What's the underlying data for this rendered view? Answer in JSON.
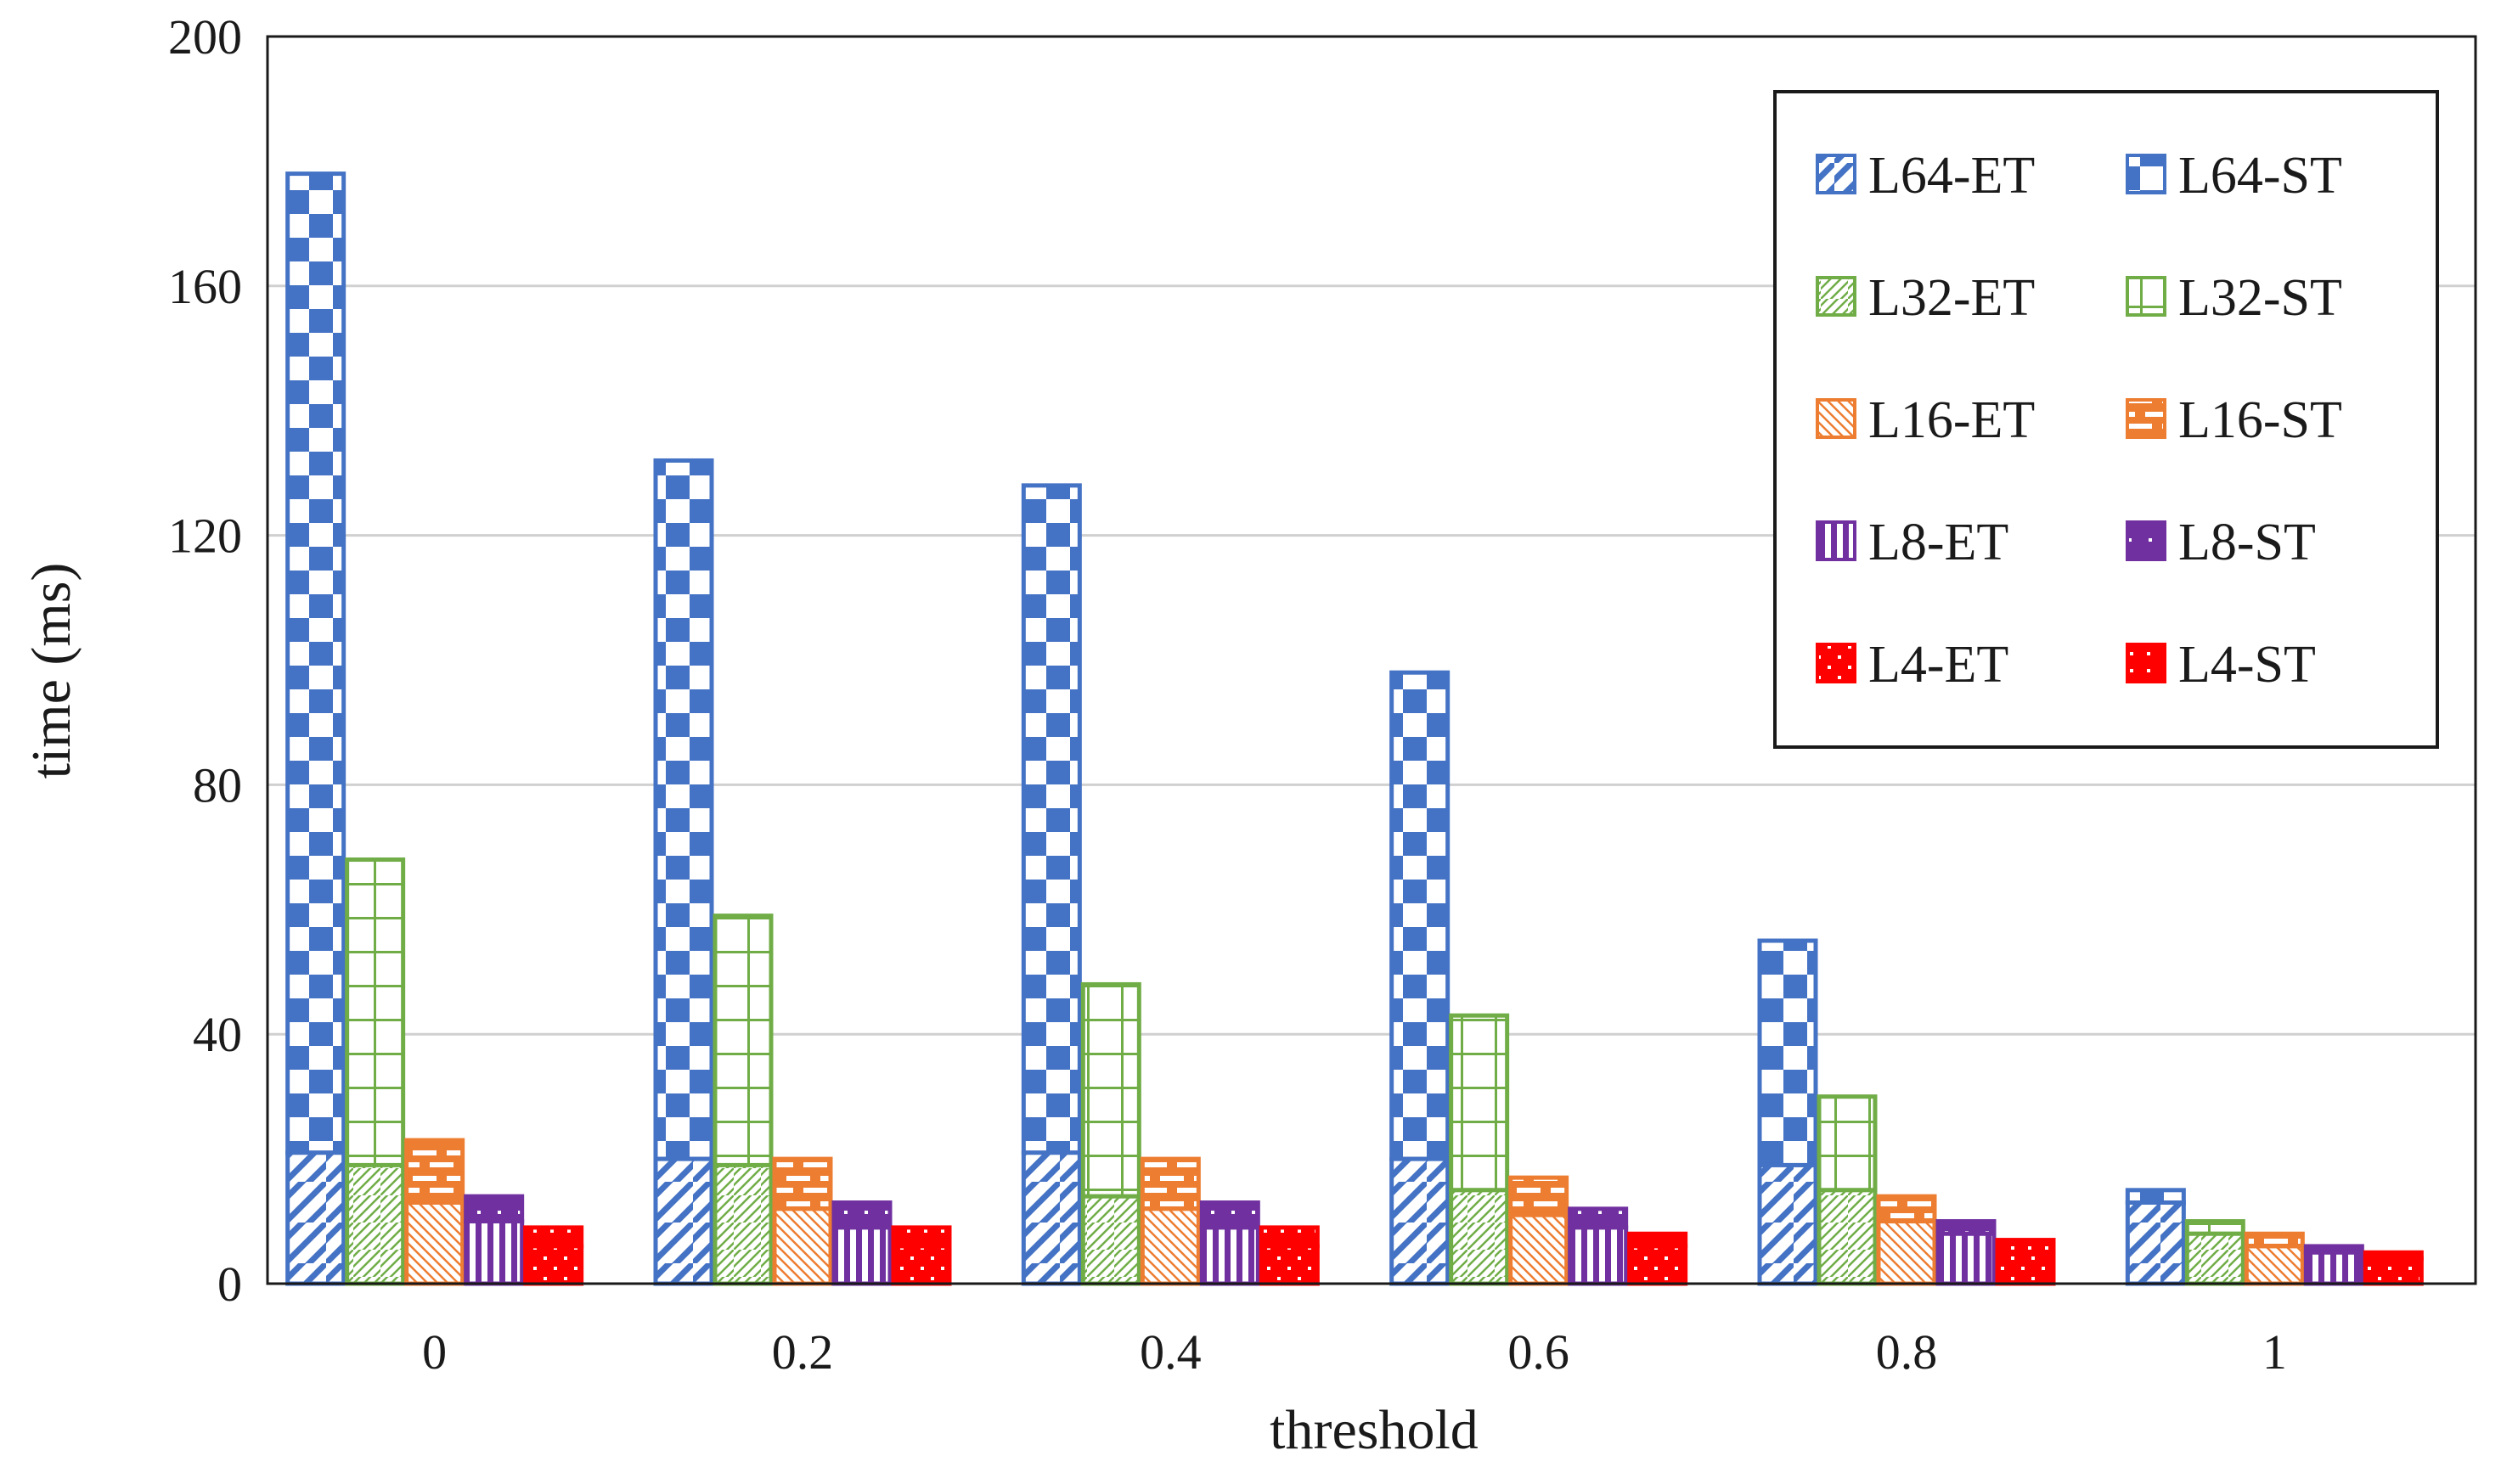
{
  "chart_data": {
    "type": "bar",
    "layout": "stacked-grouped",
    "title": "",
    "xlabel": "threshold",
    "ylabel": "time (ms)",
    "ylim": [
      0,
      200
    ],
    "yticks": [
      "0",
      "40",
      "80",
      "120",
      "160",
      "200"
    ],
    "ytick_values": [
      0,
      40,
      80,
      120,
      160,
      200
    ],
    "grid": true,
    "legend_position": "top-right",
    "categories": [
      "0",
      "0.2",
      "0.4",
      "0.6",
      "0.8",
      "1"
    ],
    "groups": [
      {
        "name": "L64",
        "color": "#4472C4",
        "et_label": "L64-ET",
        "st_label": "L64-ST",
        "et": [
          21,
          20,
          21,
          20,
          19,
          13
        ],
        "total": [
          178,
          132,
          128,
          98,
          55,
          15
        ]
      },
      {
        "name": "L32",
        "color": "#70AD47",
        "et_label": "L32-ET",
        "st_label": "L32-ST",
        "et": [
          19,
          19,
          14,
          15,
          15,
          8
        ],
        "total": [
          68,
          59,
          48,
          43,
          30,
          10
        ]
      },
      {
        "name": "L16",
        "color": "#ED7D31",
        "et_label": "L16-ET",
        "st_label": "L16-ST",
        "et": [
          13,
          12,
          12,
          11,
          10,
          6
        ],
        "total": [
          23,
          20,
          20,
          17,
          14,
          8
        ]
      },
      {
        "name": "L8",
        "color": "#7030A0",
        "et_label": "L8-ET",
        "st_label": "L8-ST",
        "et": [
          10,
          9,
          9,
          9,
          8,
          5
        ],
        "total": [
          14,
          13,
          13,
          12,
          10,
          6
        ]
      },
      {
        "name": "L4",
        "color": "#FF0000",
        "et_label": "L4-ET",
        "st_label": "L4-ST",
        "et": [
          6,
          6,
          6,
          6,
          5,
          4
        ],
        "total": [
          9,
          9,
          9,
          8,
          7,
          5
        ]
      }
    ]
  }
}
